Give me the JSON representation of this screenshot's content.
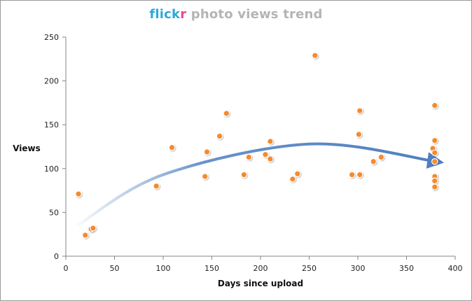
{
  "title": {
    "brand_part1": "flick",
    "brand_part2": "r",
    "rest": "photo views trend"
  },
  "chart_data": {
    "type": "scatter",
    "title": "flickr photo views trend",
    "xlabel": "Days since upload",
    "ylabel": "Views",
    "xlim": [
      0,
      400
    ],
    "ylim": [
      0,
      250
    ],
    "xticks": [
      0,
      50,
      100,
      150,
      200,
      250,
      300,
      350,
      400
    ],
    "yticks": [
      0,
      50,
      100,
      150,
      200,
      250
    ],
    "grid": false,
    "legend": "none",
    "marker_color": "#f58a2e",
    "trend_color": "#4f7fc0",
    "points": [
      {
        "x": 13,
        "y": 71
      },
      {
        "x": 20,
        "y": 24
      },
      {
        "x": 26,
        "y": 31
      },
      {
        "x": 28,
        "y": 32
      },
      {
        "x": 93,
        "y": 80
      },
      {
        "x": 109,
        "y": 124
      },
      {
        "x": 143,
        "y": 91
      },
      {
        "x": 145,
        "y": 119
      },
      {
        "x": 158,
        "y": 137
      },
      {
        "x": 165,
        "y": 163
      },
      {
        "x": 183,
        "y": 93
      },
      {
        "x": 188,
        "y": 113
      },
      {
        "x": 205,
        "y": 116
      },
      {
        "x": 210,
        "y": 131
      },
      {
        "x": 210,
        "y": 111
      },
      {
        "x": 233,
        "y": 88
      },
      {
        "x": 238,
        "y": 94
      },
      {
        "x": 256,
        "y": 229
      },
      {
        "x": 294,
        "y": 93
      },
      {
        "x": 301,
        "y": 139
      },
      {
        "x": 302,
        "y": 166
      },
      {
        "x": 302,
        "y": 93
      },
      {
        "x": 316,
        "y": 108
      },
      {
        "x": 324,
        "y": 113
      },
      {
        "x": 377,
        "y": 123
      },
      {
        "x": 379,
        "y": 172
      },
      {
        "x": 379,
        "y": 132
      },
      {
        "x": 379,
        "y": 118
      },
      {
        "x": 379,
        "y": 108
      },
      {
        "x": 379,
        "y": 91
      },
      {
        "x": 379,
        "y": 86
      },
      {
        "x": 379,
        "y": 79
      }
    ],
    "trend": [
      {
        "x": 13,
        "y": 36
      },
      {
        "x": 100,
        "y": 93
      },
      {
        "x": 250,
        "y": 128
      },
      {
        "x": 380,
        "y": 108
      }
    ]
  }
}
